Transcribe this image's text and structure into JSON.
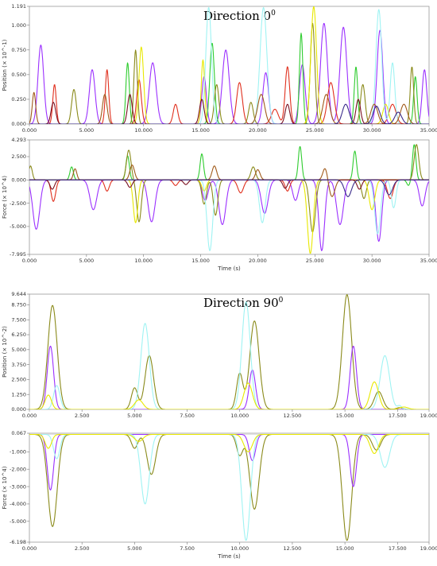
{
  "groups": [
    {
      "title": "Direction 0",
      "title_sup": "0"
    },
    {
      "title": "Direction 90",
      "title_sup": "0"
    }
  ],
  "colors": {
    "purple": "#9b30ff",
    "green": "#2ecc2e",
    "red": "#e0301e",
    "olive": "#8a8a1a",
    "yellow": "#e8e800",
    "cyan": "#9ff3f3",
    "brown": "#a05a1a",
    "darkred": "#7a1020",
    "navy": "#3a2a8a"
  },
  "chart_data": [
    {
      "type": "line",
      "panel": "direction-0-position",
      "ylabel": "Position (× 10^-1)",
      "xlim": [
        0,
        35
      ],
      "ylim": [
        0,
        1.191
      ],
      "xticks": [
        "0.000",
        "5.000",
        "10.000",
        "15.000",
        "20.000",
        "25.000",
        "30.000",
        "35.000"
      ],
      "yticks": [
        "0.000",
        "0.250",
        "0.500",
        "0.750",
        "1.000",
        "1.191"
      ],
      "xtick_values": [
        0,
        5,
        10,
        15,
        20,
        25,
        30,
        35
      ],
      "ytick_values": [
        0,
        0.25,
        0.5,
        0.75,
        1.0,
        1.191
      ],
      "series": [
        {
          "color": "purple",
          "peaks": [
            [
              1.0,
              0.8,
              0.25
            ],
            [
              5.5,
              0.55,
              0.25
            ],
            [
              10.8,
              0.62,
              0.3
            ],
            [
              15.3,
              0.48,
              0.2
            ],
            [
              17.2,
              0.75,
              0.3
            ],
            [
              20.7,
              0.52,
              0.25
            ],
            [
              23.9,
              0.6,
              0.25
            ],
            [
              25.8,
              1.02,
              0.3
            ],
            [
              27.5,
              0.98,
              0.3
            ],
            [
              30.7,
              0.95,
              0.25
            ],
            [
              34.6,
              0.55,
              0.2
            ]
          ]
        },
        {
          "color": "green",
          "peaks": [
            [
              8.6,
              0.62,
              0.15
            ],
            [
              16.0,
              0.82,
              0.2
            ],
            [
              23.8,
              0.92,
              0.15
            ],
            [
              28.6,
              0.58,
              0.15
            ],
            [
              33.8,
              0.48,
              0.15
            ]
          ]
        },
        {
          "color": "red",
          "peaks": [
            [
              2.2,
              0.4,
              0.15
            ],
            [
              6.8,
              0.55,
              0.15
            ],
            [
              9.6,
              0.45,
              0.2
            ],
            [
              12.8,
              0.2,
              0.2
            ],
            [
              18.4,
              0.42,
              0.25
            ],
            [
              21.5,
              0.15,
              0.3
            ],
            [
              22.6,
              0.58,
              0.2
            ],
            [
              26.4,
              0.42,
              0.3
            ],
            [
              31.8,
              0.2,
              0.3
            ]
          ]
        },
        {
          "color": "olive",
          "peaks": [
            [
              3.9,
              0.35,
              0.2
            ],
            [
              9.3,
              0.75,
              0.15
            ],
            [
              16.4,
              0.4,
              0.2
            ],
            [
              19.4,
              0.22,
              0.2
            ],
            [
              24.8,
              1.02,
              0.2
            ],
            [
              29.2,
              0.4,
              0.2
            ],
            [
              33.5,
              0.58,
              0.15
            ]
          ]
        },
        {
          "color": "yellow",
          "peaks": [
            [
              9.8,
              0.78,
              0.2
            ],
            [
              15.2,
              0.65,
              0.15
            ],
            [
              24.9,
              1.19,
              0.25
            ],
            [
              31.2,
              0.2,
              0.25
            ]
          ]
        },
        {
          "color": "cyan",
          "peaks": [
            [
              15.7,
              1.18,
              0.25
            ],
            [
              20.5,
              1.18,
              0.3
            ],
            [
              30.6,
              1.16,
              0.25
            ],
            [
              31.8,
              0.62,
              0.2
            ]
          ]
        },
        {
          "color": "brown",
          "peaks": [
            [
              0.4,
              0.32,
              0.15
            ],
            [
              6.6,
              0.3,
              0.2
            ],
            [
              20.3,
              0.3,
              0.3
            ],
            [
              26.0,
              0.3,
              0.3
            ],
            [
              30.2,
              0.2,
              0.3
            ],
            [
              32.8,
              0.2,
              0.3
            ]
          ]
        },
        {
          "color": "darkred",
          "peaks": [
            [
              2.1,
              0.22,
              0.2
            ],
            [
              8.8,
              0.3,
              0.2
            ],
            [
              15.1,
              0.25,
              0.2
            ],
            [
              22.6,
              0.2,
              0.2
            ],
            [
              28.8,
              0.25,
              0.2
            ]
          ]
        },
        {
          "color": "navy",
          "peaks": [
            [
              27.7,
              0.2,
              0.3
            ],
            [
              30.4,
              0.18,
              0.3
            ],
            [
              32.3,
              0.12,
              0.3
            ]
          ]
        }
      ]
    },
    {
      "type": "line",
      "panel": "direction-0-force",
      "ylabel": "Force (× 10^4)",
      "xlabel": "Time (s)",
      "xlim": [
        0,
        35
      ],
      "ylim": [
        -7.995,
        4.293
      ],
      "xticks": [
        "0.000",
        "5.000",
        "10.000",
        "15.000",
        "20.000",
        "25.000",
        "30.000",
        "35.000"
      ],
      "yticks": [
        "-7.995",
        "-5.000",
        "-2.500",
        "0.000",
        "2.500",
        "4.293"
      ],
      "xtick_values": [
        0,
        5,
        10,
        15,
        20,
        25,
        30,
        35
      ],
      "ytick_values": [
        -7.995,
        -5.0,
        -2.5,
        0,
        2.5,
        4.293
      ],
      "series": [
        {
          "color": "purple",
          "peaks": [
            [
              0.6,
              -5.3,
              0.3
            ],
            [
              5.6,
              -3.2,
              0.3
            ],
            [
              10.7,
              -4.5,
              0.3
            ],
            [
              15.4,
              -2.2,
              0.25
            ],
            [
              16.9,
              -4.8,
              0.3
            ],
            [
              20.6,
              -3.6,
              0.3
            ],
            [
              23.3,
              -2.2,
              0.25
            ],
            [
              25.6,
              -7.6,
              0.25
            ],
            [
              27.2,
              -4.8,
              0.3
            ],
            [
              30.6,
              -6.6,
              0.25
            ],
            [
              34.4,
              -2.8,
              0.25
            ]
          ]
        },
        {
          "color": "green",
          "peaks": [
            [
              3.7,
              1.4,
              0.15
            ],
            [
              8.6,
              2.6,
              0.15
            ],
            [
              15.1,
              2.8,
              0.15
            ],
            [
              23.7,
              3.6,
              0.15
            ],
            [
              28.5,
              3.1,
              0.15
            ],
            [
              33.7,
              3.8,
              0.15
            ],
            [
              33.2,
              -0.6,
              0.15
            ]
          ]
        },
        {
          "color": "red",
          "peaks": [
            [
              2.1,
              -2.3,
              0.2
            ],
            [
              6.8,
              -1.2,
              0.2
            ],
            [
              12.8,
              -0.6,
              0.2
            ],
            [
              18.5,
              -1.4,
              0.25
            ],
            [
              22.6,
              -1.2,
              0.2
            ],
            [
              31.6,
              -2.0,
              0.25
            ]
          ]
        },
        {
          "color": "olive",
          "peaks": [
            [
              0.1,
              1.5,
              0.15
            ],
            [
              8.7,
              3.2,
              0.2
            ],
            [
              9.6,
              -4.5,
              0.2
            ],
            [
              15.3,
              -2.6,
              0.2
            ],
            [
              16.3,
              -3.8,
              0.2
            ],
            [
              19.6,
              1.4,
              0.2
            ],
            [
              24.8,
              -5.6,
              0.25
            ],
            [
              29.3,
              -2.0,
              0.2
            ],
            [
              33.9,
              3.8,
              0.2
            ]
          ]
        },
        {
          "color": "yellow",
          "peaks": [
            [
              9.3,
              -4.6,
              0.2
            ],
            [
              15.3,
              -1.2,
              0.2
            ],
            [
              24.6,
              -7.9,
              0.25
            ],
            [
              30.0,
              -3.2,
              0.25
            ]
          ]
        },
        {
          "color": "cyan",
          "peaks": [
            [
              15.8,
              -7.6,
              0.25
            ],
            [
              20.4,
              -4.6,
              0.25
            ],
            [
              30.5,
              -5.8,
              0.25
            ],
            [
              31.9,
              -3.0,
              0.2
            ]
          ]
        },
        {
          "color": "brown",
          "peaks": [
            [
              4.0,
              1.2,
              0.15
            ],
            [
              9.0,
              1.6,
              0.2
            ],
            [
              16.2,
              1.5,
              0.2
            ],
            [
              20.0,
              1.1,
              0.2
            ],
            [
              25.9,
              1.3,
              0.2
            ],
            [
              26.5,
              -1.8,
              0.25
            ]
          ]
        },
        {
          "color": "darkred",
          "peaks": [
            [
              2.0,
              -1.0,
              0.2
            ],
            [
              8.8,
              -0.8,
              0.2
            ],
            [
              13.7,
              -0.5,
              0.2
            ],
            [
              22.4,
              -0.9,
              0.2
            ],
            [
              28.9,
              -1.0,
              0.2
            ]
          ]
        },
        {
          "color": "navy",
          "peaks": [
            [
              27.9,
              -1.8,
              0.3
            ],
            [
              31.5,
              -1.6,
              0.3
            ]
          ]
        }
      ]
    },
    {
      "type": "line",
      "panel": "direction-90-position",
      "ylabel": "Position (× 10^-2)",
      "xlim": [
        0,
        19
      ],
      "ylim": [
        0,
        9.644
      ],
      "xticks": [
        "0.000",
        "2.500",
        "5.000",
        "7.500",
        "10.000",
        "12.500",
        "15.000",
        "17.500",
        "19.000"
      ],
      "yticks": [
        "0.000",
        "1.250",
        "2.500",
        "3.750",
        "5.000",
        "6.250",
        "7.500",
        "8.750",
        "9.644"
      ],
      "xtick_values": [
        0,
        2.5,
        5,
        7.5,
        10,
        12.5,
        15,
        17.5,
        19
      ],
      "ytick_values": [
        0,
        1.25,
        2.5,
        3.75,
        5.0,
        6.25,
        7.5,
        8.75,
        9.644
      ],
      "series": [
        {
          "color": "olive",
          "peaks": [
            [
              1.1,
              8.7,
              0.22
            ],
            [
              5.0,
              1.8,
              0.15
            ],
            [
              5.7,
              4.5,
              0.2
            ],
            [
              10.0,
              3.0,
              0.15
            ],
            [
              10.7,
              7.4,
              0.22
            ],
            [
              15.1,
              9.6,
              0.22
            ],
            [
              16.6,
              1.5,
              0.2
            ],
            [
              17.6,
              0.15,
              0.15
            ]
          ]
        },
        {
          "color": "purple",
          "peaks": [
            [
              1.0,
              5.3,
              0.15
            ],
            [
              10.6,
              3.3,
              0.15
            ],
            [
              15.4,
              5.3,
              0.15
            ]
          ]
        },
        {
          "color": "cyan",
          "peaks": [
            [
              1.3,
              2.0,
              0.15
            ],
            [
              5.5,
              7.2,
              0.2
            ],
            [
              10.3,
              9.0,
              0.2
            ],
            [
              16.9,
              4.5,
              0.22
            ],
            [
              17.6,
              0.3,
              0.1
            ]
          ]
        },
        {
          "color": "yellow",
          "peaks": [
            [
              0.9,
              1.2,
              0.15
            ],
            [
              5.2,
              0.8,
              0.2
            ],
            [
              10.4,
              2.2,
              0.2
            ],
            [
              16.4,
              2.3,
              0.2
            ],
            [
              17.8,
              0.2,
              0.2
            ]
          ]
        }
      ]
    },
    {
      "type": "line",
      "panel": "direction-90-force",
      "ylabel": "Force (× 10^4)",
      "xlabel": "Time (s)",
      "xlim": [
        0,
        19
      ],
      "ylim": [
        -6.198,
        0.067
      ],
      "xticks": [
        "0.000",
        "2.500",
        "5.000",
        "7.500",
        "10.000",
        "12.500",
        "15.000",
        "17.500",
        "19.000"
      ],
      "yticks": [
        "-6.198",
        "-5.000",
        "-4.000",
        "-3.000",
        "-2.000",
        "-1.000",
        "0.067"
      ],
      "xtick_values": [
        0,
        2.5,
        5,
        7.5,
        10,
        12.5,
        15,
        17.5,
        19
      ],
      "ytick_values": [
        -6.198,
        -5.0,
        -4.0,
        -3.0,
        -2.0,
        -1.0,
        0.067
      ],
      "series": [
        {
          "color": "olive",
          "peaks": [
            [
              1.1,
              -5.3,
              0.22
            ],
            [
              5.0,
              -0.8,
              0.15
            ],
            [
              5.8,
              -2.3,
              0.2
            ],
            [
              10.0,
              -1.2,
              0.15
            ],
            [
              10.7,
              -4.3,
              0.22
            ],
            [
              15.1,
              -6.1,
              0.22
            ],
            [
              16.5,
              -0.9,
              0.2
            ]
          ]
        },
        {
          "color": "purple",
          "peaks": [
            [
              1.0,
              -3.2,
              0.15
            ],
            [
              10.6,
              -1.5,
              0.15
            ],
            [
              15.4,
              -3.0,
              0.15
            ]
          ]
        },
        {
          "color": "cyan",
          "peaks": [
            [
              1.3,
              -1.4,
              0.15
            ],
            [
              5.5,
              -4.0,
              0.2
            ],
            [
              10.3,
              -6.1,
              0.2
            ],
            [
              16.9,
              -1.9,
              0.22
            ]
          ]
        },
        {
          "color": "yellow",
          "peaks": [
            [
              0.9,
              -0.8,
              0.15
            ],
            [
              5.2,
              -0.4,
              0.2
            ],
            [
              10.4,
              -1.0,
              0.2
            ],
            [
              16.4,
              -1.1,
              0.2
            ]
          ]
        }
      ]
    }
  ]
}
